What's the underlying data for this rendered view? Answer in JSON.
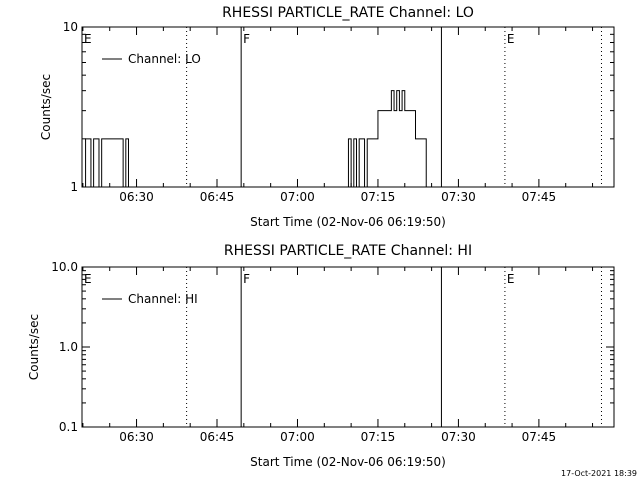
{
  "timestamp": "17-Oct-2021 18:39",
  "colors": {
    "background": "#ffffff",
    "ink": "#000000"
  },
  "chart_data": [
    {
      "type": "line",
      "title": "RHESSI PARTICLE_RATE Channel: LO",
      "xlabel": "Start Time (02-Nov-06 06:19:50)",
      "ylabel": "Counts/sec",
      "xlim": [
        "06:19:50",
        "07:59:00"
      ],
      "ylim": [
        1,
        10
      ],
      "yscale": "log",
      "x_ticks": [
        "06:30",
        "06:45",
        "07:00",
        "07:15",
        "07:30",
        "07:45"
      ],
      "y_ticks": [
        "1",
        "10"
      ],
      "legend": {
        "labels": [
          "Channel: LO"
        ],
        "position": "top-left"
      },
      "series": [
        {
          "name": "Channel: LO",
          "x": [
            "06:19:50",
            "06:20:30",
            "06:21:00",
            "06:21:30",
            "06:22:00",
            "06:22:30",
            "06:23:00",
            "06:23:30",
            "06:24:00",
            "06:25:00",
            "06:26:00",
            "06:27:00",
            "06:27:30",
            "06:28:00",
            "06:28:30",
            "06:29:00",
            "06:30:00",
            "06:31:00",
            "06:36:00",
            "06:40:00",
            "06:45:00",
            "06:50:00",
            "06:55:00",
            "07:00:00",
            "07:05:00",
            "07:09:00",
            "07:09:30",
            "07:10:00",
            "07:10:30",
            "07:11:00",
            "07:11:30",
            "07:12:00",
            "07:12:30",
            "07:13:00",
            "07:14:00",
            "07:15:00",
            "07:16:00",
            "07:17:00",
            "07:17:30",
            "07:18:00",
            "07:18:30",
            "07:19:00",
            "07:19:30",
            "07:20:00",
            "07:21:00",
            "07:22:00",
            "07:23:00",
            "07:24:00",
            "07:25:00",
            "07:26:00",
            "07:30:00",
            "07:40:00",
            "07:59:00"
          ],
          "values": [
            1,
            2,
            2,
            1,
            2,
            2,
            1,
            2,
            2,
            2,
            2,
            2,
            1,
            2,
            1,
            1,
            1,
            1,
            1,
            1,
            1,
            1,
            1,
            1,
            1,
            1,
            2,
            1,
            2,
            1,
            2,
            2,
            1,
            2,
            2,
            3,
            3,
            3,
            4,
            3,
            4,
            3,
            4,
            3,
            3,
            2,
            2,
            1,
            1,
            1,
            1,
            1,
            1
          ]
        }
      ],
      "annotations": [
        {
          "text": "E",
          "time": "06:19:50",
          "style": "solid"
        },
        {
          "text": "",
          "time": "06:39:20",
          "style": "dotted"
        },
        {
          "text": "F",
          "time": "06:49:30",
          "style": "solid"
        },
        {
          "text": "",
          "time": "07:26:50",
          "style": "solid"
        },
        {
          "text": "E",
          "time": "07:38:40",
          "style": "dotted"
        },
        {
          "text": "",
          "time": "07:56:40",
          "style": "dotted"
        }
      ]
    },
    {
      "type": "line",
      "title": "RHESSI PARTICLE_RATE Channel: HI",
      "xlabel": "Start Time (02-Nov-06 06:19:50)",
      "ylabel": "Counts/sec",
      "xlim": [
        "06:19:50",
        "07:59:00"
      ],
      "ylim": [
        0.1,
        10
      ],
      "yscale": "log",
      "x_ticks": [
        "06:30",
        "06:45",
        "07:00",
        "07:15",
        "07:30",
        "07:45"
      ],
      "y_ticks": [
        "10.0",
        "1.0",
        "0.1"
      ],
      "legend": {
        "labels": [
          "Channel: HI"
        ],
        "position": "top-left"
      },
      "series": [
        {
          "name": "Channel: HI",
          "x": [],
          "values": []
        }
      ],
      "annotations": [
        {
          "text": "E",
          "time": "06:19:50",
          "style": "solid"
        },
        {
          "text": "",
          "time": "06:39:20",
          "style": "dotted"
        },
        {
          "text": "F",
          "time": "06:49:30",
          "style": "solid"
        },
        {
          "text": "",
          "time": "07:26:50",
          "style": "solid"
        },
        {
          "text": "E",
          "time": "07:38:40",
          "style": "dotted"
        },
        {
          "text": "",
          "time": "07:56:40",
          "style": "dotted"
        }
      ]
    }
  ]
}
